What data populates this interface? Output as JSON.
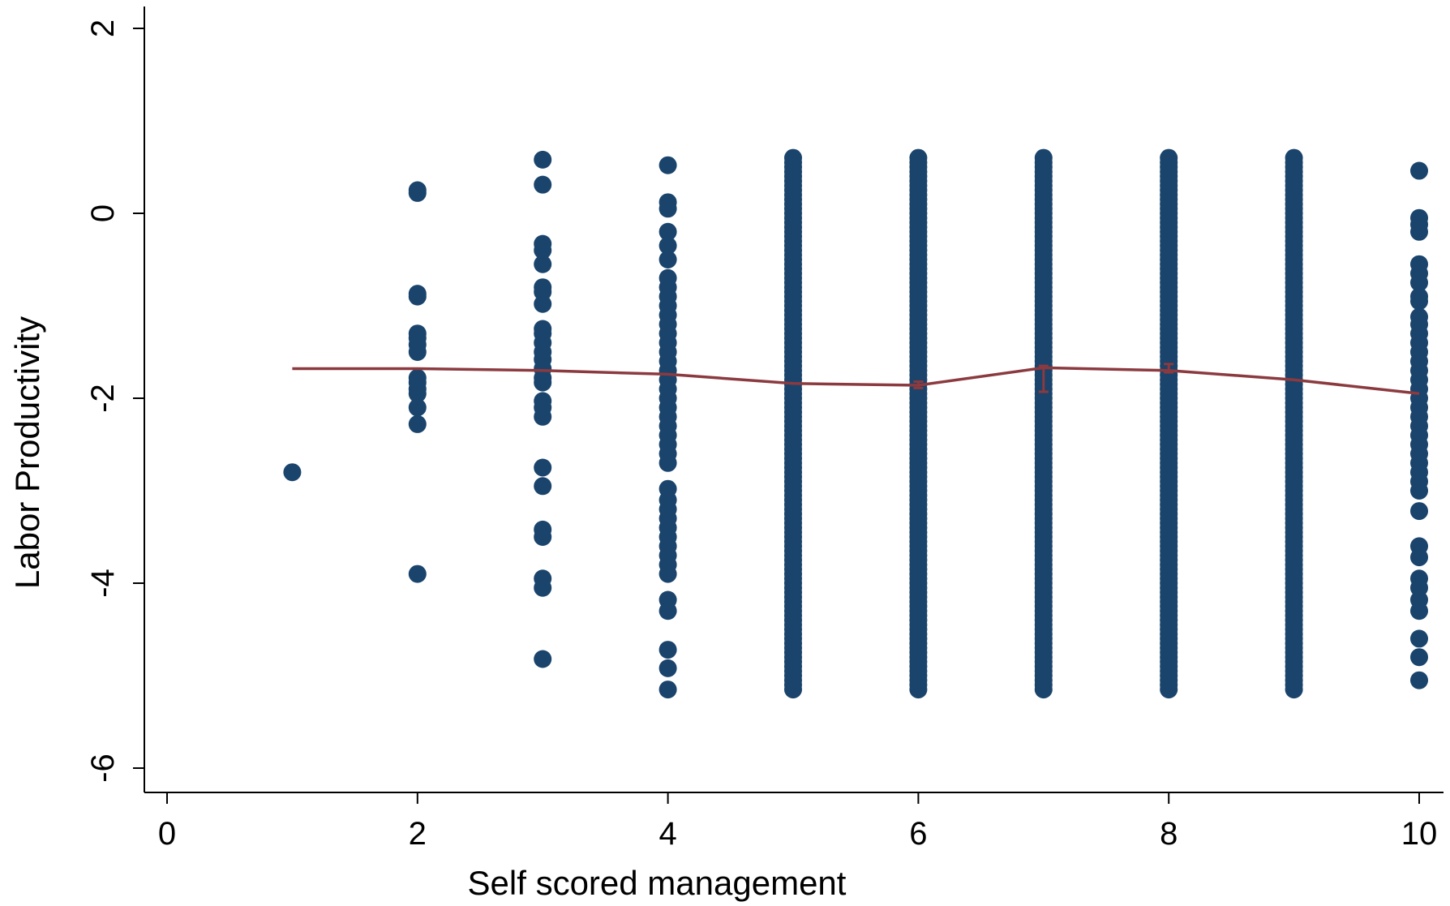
{
  "chart_data": {
    "type": "scatter",
    "title": "",
    "xlabel": "Self scored management",
    "ylabel": "Labor Productivity",
    "xlim": [
      -0.2,
      10.2
    ],
    "ylim": [
      -6.25,
      2.25
    ],
    "xticks": [
      0,
      2,
      4,
      6,
      8,
      10
    ],
    "yticks": [
      -6,
      -4,
      -2,
      0,
      2
    ],
    "xtick_labels": [
      "0",
      "2",
      "4",
      "6",
      "8",
      "10"
    ],
    "ytick_labels": [
      "-6",
      "-4",
      "-2",
      "0",
      "2"
    ],
    "grid": false,
    "legend": "none",
    "colors": {
      "points": "#1a446c",
      "line": "#8b3a3f"
    },
    "scatter_columns": [
      {
        "x": 1,
        "ys": [
          -2.8
        ]
      },
      {
        "x": 2,
        "ys": [
          0.25,
          0.22,
          -0.87,
          -0.9,
          -1.3,
          -1.35,
          -1.42,
          -1.5,
          -1.78,
          -1.83,
          -1.9,
          -1.95,
          -2.1,
          -2.28,
          -3.9
        ]
      },
      {
        "x": 3,
        "ys": [
          0.58,
          0.31,
          -0.33,
          -0.4,
          -0.55,
          -0.8,
          -0.85,
          -0.98,
          -1.25,
          -1.3,
          -1.4,
          -1.5,
          -1.58,
          -1.68,
          -1.78,
          -1.83,
          -2.03,
          -2.1,
          -2.2,
          -2.75,
          -2.95,
          -3.42,
          -3.5,
          -3.95,
          -4.05,
          -4.82
        ]
      },
      {
        "x": 4,
        "ys": [
          0.52,
          0.12,
          0.05,
          -0.2,
          -0.35,
          -0.5,
          -0.7,
          -0.8,
          -0.9,
          -1.0,
          -1.1,
          -1.2,
          -1.3,
          -1.4,
          -1.5,
          -1.6,
          -1.7,
          -1.8,
          -1.9,
          -2.0,
          -2.1,
          -2.2,
          -2.3,
          -2.4,
          -2.5,
          -2.6,
          -2.7,
          -2.98,
          -3.1,
          -3.2,
          -3.3,
          -3.4,
          -3.5,
          -3.6,
          -3.7,
          -3.8,
          -3.9,
          -4.18,
          -4.3,
          -4.72,
          -4.92,
          -5.15
        ]
      },
      {
        "x": 5,
        "range": [
          -5.15,
          0.63
        ],
        "step": 0.05
      },
      {
        "x": 6,
        "range": [
          -5.15,
          0.63
        ],
        "step": 0.05
      },
      {
        "x": 7,
        "range": [
          -5.15,
          0.63
        ],
        "step": 0.05
      },
      {
        "x": 8,
        "range": [
          -5.15,
          0.63
        ],
        "step": 0.05
      },
      {
        "x": 9,
        "range": [
          -5.15,
          0.63
        ],
        "step": 0.05
      },
      {
        "x": 10,
        "ys": [
          0.46,
          -0.05,
          -0.12,
          -0.2,
          -0.55,
          -0.65,
          -0.75,
          -0.9,
          -0.95,
          -1.12,
          -1.2,
          -1.3,
          -1.4,
          -1.5,
          -1.6,
          -1.7,
          -1.8,
          -1.9,
          -2.0,
          -2.1,
          -2.2,
          -2.3,
          -2.4,
          -2.5,
          -2.6,
          -2.7,
          -2.8,
          -2.9,
          -3.0,
          -3.22,
          -3.6,
          -3.72,
          -3.95,
          -4.05,
          -4.18,
          -4.3,
          -4.6,
          -4.8,
          -5.05
        ]
      }
    ],
    "fit_line": {
      "name": "",
      "x": [
        1,
        2,
        3,
        4,
        5,
        6,
        7,
        8,
        9,
        10
      ],
      "y": [
        -1.68,
        -1.68,
        -1.7,
        -1.74,
        -1.84,
        -1.86,
        -1.67,
        -1.7,
        -1.8,
        -1.95
      ]
    },
    "error_bars": [
      {
        "x": 6,
        "low": -1.89,
        "high": -1.82
      },
      {
        "x": 7,
        "low": -1.93,
        "high": -1.65
      },
      {
        "x": 8,
        "low": -1.72,
        "high": -1.63
      }
    ]
  }
}
